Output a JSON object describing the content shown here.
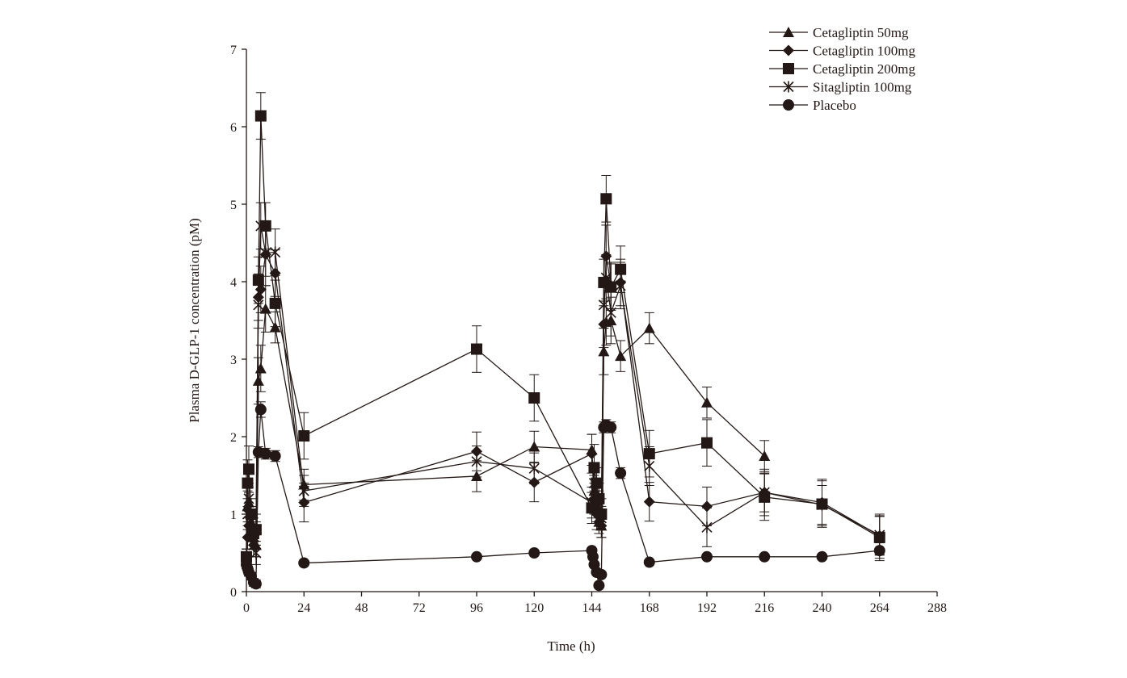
{
  "chart_data": {
    "type": "line",
    "title": "",
    "xlabel": "Time (h)",
    "ylabel": "Plasma D-GLP-1 concentration (pM)",
    "xlim": [
      0,
      288
    ],
    "ylim": [
      0,
      7
    ],
    "xticks": [
      0,
      24,
      48,
      72,
      96,
      120,
      144,
      168,
      192,
      216,
      240,
      264,
      288
    ],
    "yticks": [
      0,
      1,
      2,
      3,
      4,
      5,
      6,
      7
    ],
    "grid": false,
    "legend_position": "top-right",
    "color": "#231815",
    "series": [
      {
        "name": "Cetagliptin 50mg",
        "marker": "triangle",
        "x": [
          0,
          0.5,
          1,
          2,
          3,
          4,
          5,
          6,
          8,
          12,
          24,
          96,
          120,
          144,
          145,
          146,
          147,
          148,
          149,
          150,
          152,
          156,
          168,
          192,
          216
        ],
        "y": [
          0.4,
          1.1,
          1.15,
          0.9,
          0.7,
          0.6,
          2.72,
          2.88,
          3.65,
          3.41,
          1.38,
          1.49,
          1.87,
          1.83,
          1.3,
          1.1,
          0.9,
          0.85,
          3.1,
          3.48,
          3.5,
          3.04,
          3.4,
          2.44,
          1.75
        ],
        "sd": [
          0.1,
          0.2,
          0.2,
          0.15,
          0.15,
          0.15,
          0.3,
          0.3,
          0.3,
          0.2,
          0.2,
          0.2,
          0.2,
          0.2,
          0.2,
          0.2,
          0.15,
          0.15,
          0.3,
          0.3,
          0.3,
          0.2,
          0.2,
          0.2,
          0.2
        ]
      },
      {
        "name": "Cetagliptin 100mg",
        "marker": "diamond",
        "x": [
          0,
          0.5,
          1,
          2,
          3,
          4,
          5,
          6,
          8,
          12,
          24,
          96,
          120,
          144,
          145,
          146,
          147,
          148,
          149,
          150,
          152,
          156,
          168,
          192,
          216,
          240,
          264
        ],
        "y": [
          0.4,
          0.7,
          0.85,
          0.8,
          0.6,
          0.75,
          3.8,
          3.9,
          4.35,
          4.11,
          1.15,
          1.81,
          1.41,
          1.78,
          1.2,
          1.0,
          0.9,
          0.85,
          3.45,
          4.33,
          3.95,
          3.99,
          1.16,
          1.1,
          1.28,
          1.15,
          0.72
        ],
        "sd": [
          0.1,
          0.15,
          0.15,
          0.15,
          0.15,
          0.15,
          0.3,
          0.3,
          0.4,
          0.3,
          0.25,
          0.25,
          0.25,
          0.25,
          0.2,
          0.2,
          0.15,
          0.15,
          0.3,
          0.4,
          0.3,
          0.3,
          0.25,
          0.25,
          0.3,
          0.3,
          0.25
        ]
      },
      {
        "name": "Cetagliptin 200mg",
        "marker": "square",
        "x": [
          0,
          0.5,
          1,
          2,
          3,
          4,
          5,
          6,
          8,
          12,
          24,
          96,
          120,
          144,
          145,
          146,
          147,
          148,
          149,
          150,
          152,
          156,
          168,
          192,
          216,
          240,
          264
        ],
        "y": [
          0.45,
          1.4,
          1.58,
          1.0,
          0.75,
          0.8,
          4.02,
          6.14,
          4.72,
          3.72,
          2.01,
          3.13,
          2.5,
          1.08,
          1.6,
          1.4,
          1.2,
          1.0,
          3.99,
          5.07,
          3.93,
          4.16,
          1.78,
          1.92,
          1.22,
          1.13,
          0.7
        ],
        "sd": [
          0.1,
          0.3,
          0.3,
          0.2,
          0.2,
          0.2,
          0.3,
          0.3,
          0.3,
          0.3,
          0.3,
          0.3,
          0.3,
          0.2,
          0.3,
          0.2,
          0.2,
          0.2,
          0.3,
          0.3,
          0.3,
          0.3,
          0.3,
          0.3,
          0.3,
          0.3,
          0.3
        ]
      },
      {
        "name": "Sitagliptin 100mg",
        "marker": "asterisk",
        "x": [
          0,
          0.5,
          1,
          2,
          3,
          4,
          5,
          6,
          8,
          12,
          24,
          96,
          120,
          144,
          145,
          146,
          147,
          148,
          149,
          150,
          152,
          156,
          168,
          192,
          216,
          240,
          264
        ],
        "y": [
          0.45,
          1.0,
          1.2,
          0.9,
          0.6,
          0.5,
          3.7,
          4.72,
          4.37,
          4.38,
          1.3,
          1.68,
          1.59,
          1.15,
          1.4,
          1.2,
          1.1,
          0.95,
          3.7,
          4.05,
          3.6,
          3.95,
          1.62,
          0.83,
          1.28,
          1.12,
          0.73
        ],
        "sd": [
          0.1,
          0.2,
          0.2,
          0.2,
          0.15,
          0.15,
          0.3,
          0.3,
          0.3,
          0.3,
          0.2,
          0.2,
          0.2,
          0.2,
          0.2,
          0.2,
          0.2,
          0.15,
          0.3,
          0.3,
          0.3,
          0.3,
          0.25,
          0.25,
          0.25,
          0.25,
          0.25
        ]
      },
      {
        "name": "Placebo",
        "marker": "circle",
        "x": [
          0,
          0.5,
          1,
          2,
          3,
          4,
          5,
          6,
          8,
          12,
          24,
          96,
          120,
          144,
          144.5,
          145,
          146,
          147,
          148,
          149,
          150,
          152,
          156,
          168,
          192,
          216,
          240,
          264
        ],
        "y": [
          0.35,
          0.3,
          0.25,
          0.2,
          0.12,
          0.1,
          1.8,
          2.35,
          1.78,
          1.75,
          0.37,
          0.45,
          0.5,
          0.53,
          0.45,
          0.35,
          0.25,
          0.08,
          0.22,
          2.12,
          2.15,
          2.12,
          1.53,
          0.38,
          0.45,
          0.45,
          0.45,
          0.53
        ],
        "sd": [
          0.05,
          0.05,
          0.05,
          0.05,
          0.05,
          0.05,
          0.07,
          0.1,
          0.07,
          0.07,
          0.03,
          0.03,
          0.03,
          0.03,
          0.03,
          0.03,
          0.03,
          0.02,
          0.03,
          0.07,
          0.07,
          0.07,
          0.07,
          0.03,
          0.03,
          0.03,
          0.03,
          0.1
        ]
      }
    ]
  }
}
